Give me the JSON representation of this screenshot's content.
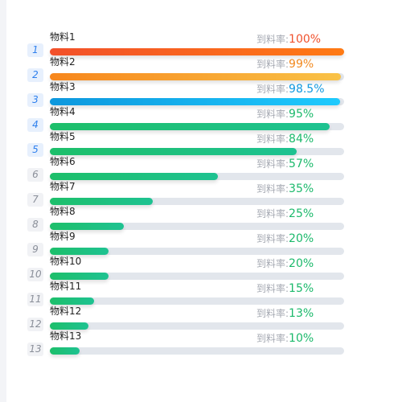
{
  "list": {
    "rate_label": "到料率:",
    "items": [
      {
        "rank": "1",
        "name": "物料1",
        "rate": "100%",
        "progress": 100,
        "fill": "linear-gradient(90deg, #f2502a, #ff7a14)",
        "value_color": "#f0512c"
      },
      {
        "rank": "2",
        "name": "物料2",
        "rate": "99%",
        "progress": 99,
        "fill": "linear-gradient(90deg, #f7861c, #f9c247)",
        "value_color": "#f2891f"
      },
      {
        "rank": "3",
        "name": "物料3",
        "rate": "98.5%",
        "progress": 98.5,
        "fill": "linear-gradient(90deg, #0d97dd, #1fcafd)",
        "value_color": "#0f98df"
      },
      {
        "rank": "4",
        "name": "物料4",
        "rate": "95%",
        "progress": 95,
        "fill": "linear-gradient(90deg, #1dbf6a, #1ec291)",
        "value_color": "#1bb96b"
      },
      {
        "rank": "5",
        "name": "物料5",
        "rate": "84%",
        "progress": 84,
        "fill": "linear-gradient(90deg, #1dbf6a, #1ec291)",
        "value_color": "#1bb96b"
      },
      {
        "rank": "6",
        "name": "物料6",
        "rate": "57%",
        "progress": 57,
        "fill": "linear-gradient(90deg, #1dbf6a, #1ec291)",
        "value_color": "#1bb96b"
      },
      {
        "rank": "7",
        "name": "物料7",
        "rate": "35%",
        "progress": 35,
        "fill": "linear-gradient(90deg, #1dbf6a, #1ec291)",
        "value_color": "#1bb96b"
      },
      {
        "rank": "8",
        "name": "物料8",
        "rate": "25%",
        "progress": 25,
        "fill": "linear-gradient(90deg, #1dbf6a, #1ec291)",
        "value_color": "#1bb96b"
      },
      {
        "rank": "9",
        "name": "物料9",
        "rate": "20%",
        "progress": 20,
        "fill": "linear-gradient(90deg, #1dbf6a, #1ec291)",
        "value_color": "#1bb96b"
      },
      {
        "rank": "10",
        "name": "物料10",
        "rate": "20%",
        "progress": 20,
        "fill": "linear-gradient(90deg, #1dbf6a, #1ec291)",
        "value_color": "#1bb96b"
      },
      {
        "rank": "11",
        "name": "物料11",
        "rate": "15%",
        "progress": 15,
        "fill": "linear-gradient(90deg, #1dbf6a, #1ec291)",
        "value_color": "#1bb96b"
      },
      {
        "rank": "12",
        "name": "物料12",
        "rate": "13%",
        "progress": 13,
        "fill": "linear-gradient(90deg, #1dbf6a, #1ec291)",
        "value_color": "#1bb96b"
      },
      {
        "rank": "13",
        "name": "物料13",
        "rate": "10%",
        "progress": 10,
        "fill": "linear-gradient(90deg, #1dbf6a, #1ec291)",
        "value_color": "#1bb96b"
      }
    ]
  }
}
